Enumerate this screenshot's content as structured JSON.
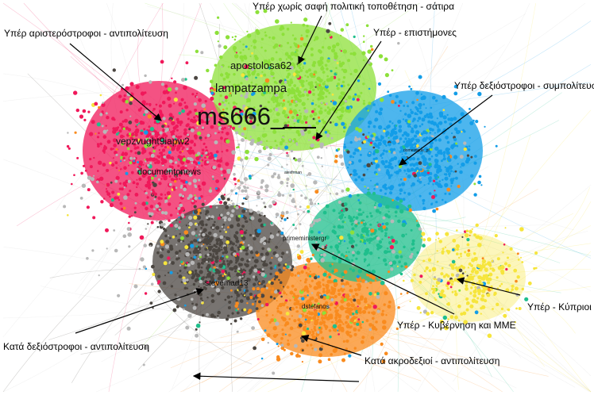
{
  "clusters": [
    {
      "id": "pink",
      "color": "#f0185a"
    },
    {
      "id": "green",
      "color": "#8de03a"
    },
    {
      "id": "blue",
      "color": "#129de8"
    },
    {
      "id": "dark",
      "color": "#4b4641"
    },
    {
      "id": "orange",
      "color": "#f98b1e"
    },
    {
      "id": "yellow",
      "color": "#f6e53c"
    },
    {
      "id": "teal",
      "color": "#1fbf8c"
    },
    {
      "id": "gray",
      "color": "#b8b8b8"
    }
  ],
  "annotations": [
    {
      "id": "left-opposition",
      "text": "Υπέρ αριστερόστροφοι - αντιπολίτευση"
    },
    {
      "id": "satire",
      "text": "Υπέρ χωρίς σαφή πολιτική τοποθέτηση - σάτιρα"
    },
    {
      "id": "scientists",
      "text": "Υπέρ - επιστήμονες"
    },
    {
      "id": "right-coalition",
      "text": "Υπέρ δεξιόστροφοι - συμπολίτευση"
    },
    {
      "id": "cypriots",
      "text": "Υπέρ - Κύπριοι"
    },
    {
      "id": "government-media",
      "text": "Υπέρ - Κυβέρνηση και ΜΜΕ"
    },
    {
      "id": "against-right",
      "text": "Κατά δεξιόστροφοι - αντιπολίτευση"
    },
    {
      "id": "against-far-right",
      "text": "Κατά ακροδεξιοί - αντιπολίτευση"
    }
  ],
  "node_labels": [
    {
      "text": "apostolosa62"
    },
    {
      "text": "lampatzampa"
    },
    {
      "text": "ms666_"
    },
    {
      "text": "vepzvught9iapw2"
    },
    {
      "text": "documentonews"
    },
    {
      "text": "stevemad13"
    },
    {
      "text": "dstefanos"
    },
    {
      "text": "primeministergr"
    },
    {
      "text": "alexfrman"
    },
    {
      "text": "domestique_pf"
    }
  ]
}
